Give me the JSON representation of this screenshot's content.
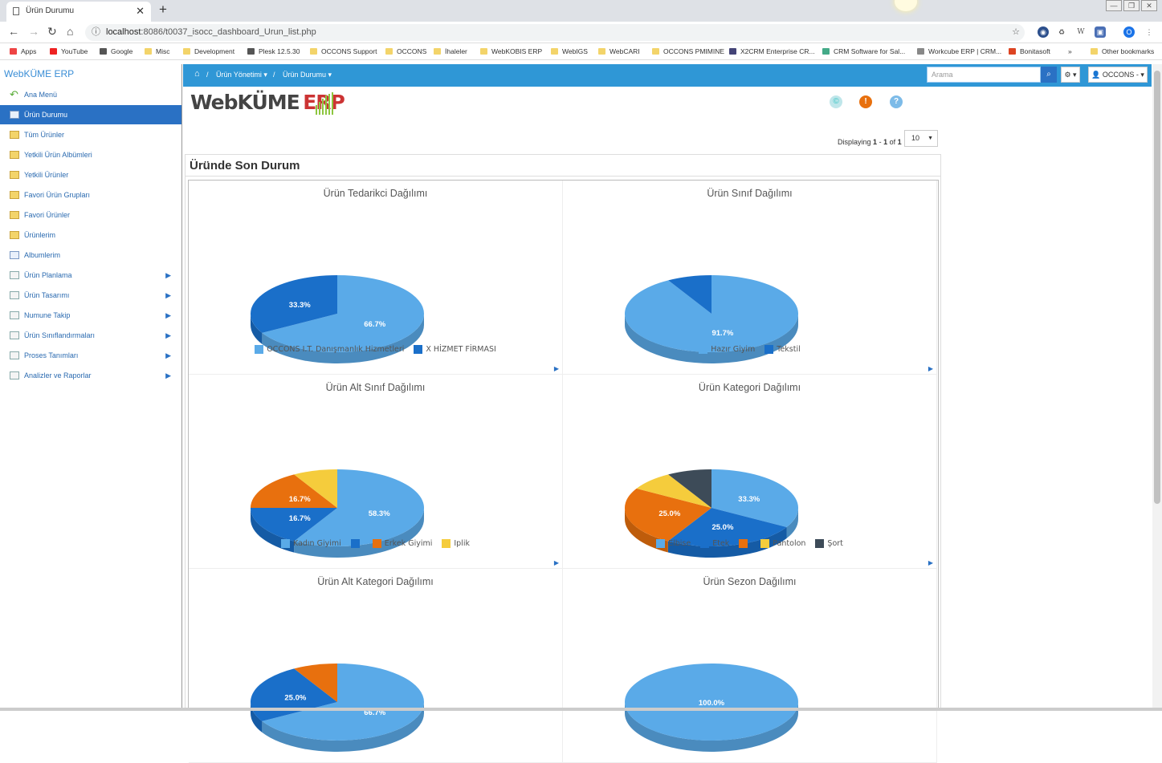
{
  "browser": {
    "tab_title": "Ürün Durumu",
    "url_host": "localhost",
    "url_path": ":8086/t0037_isocc_dashboard_Urun_list.php",
    "bookmarks": [
      "Apps",
      "YouTube",
      "Google",
      "Misc",
      "Development",
      "Plesk 12.5.30",
      "OCCONS Support",
      "OCCONS",
      "İhaleler",
      "WebKOBIS ERP",
      "WebIGS",
      "WebCARI",
      "OCCONS PMIMINE",
      "X2CRM Enterprise CR...",
      "CRM Software for Sal...",
      "Workcube ERP | CRM...",
      "Bonitasoft",
      "»",
      "Other bookmarks"
    ],
    "profile_initial": "O",
    "ext_w": "W"
  },
  "sidebar": {
    "brand": "WebKÜME ERP",
    "items": [
      {
        "label": "Ana Menü",
        "submenu": false
      },
      {
        "label": "Ürün Durumu",
        "submenu": false
      },
      {
        "label": "Tüm Ürünler",
        "submenu": false
      },
      {
        "label": "Yetkili Ürün Albümleri",
        "submenu": false
      },
      {
        "label": "Yetkili Ürünler",
        "submenu": false
      },
      {
        "label": "Favori Ürün Grupları",
        "submenu": false
      },
      {
        "label": "Favori Ürünler",
        "submenu": false
      },
      {
        "label": "Ürünlerim",
        "submenu": false
      },
      {
        "label": "Albumlerim",
        "submenu": false
      },
      {
        "label": "Ürün Planlama",
        "submenu": true
      },
      {
        "label": "Ürün Tasarımı",
        "submenu": true
      },
      {
        "label": "Numune Takip",
        "submenu": true
      },
      {
        "label": "Ürün Sınıflandırmaları",
        "submenu": true
      },
      {
        "label": "Proses Tanımları",
        "submenu": true
      },
      {
        "label": "Analizler ve Raporlar",
        "submenu": true
      }
    ]
  },
  "topnav": {
    "crumb1": "Ürün Yönetimi",
    "crumb2": "Ürün Durumu",
    "search_placeholder": "Arama",
    "user": "OCCONS -"
  },
  "logo": {
    "main": "WebKÜME",
    "erp": "ERP"
  },
  "pager": {
    "display_prefix": "Displaying",
    "from": "1",
    "to": "1",
    "of_label": "of",
    "total": "1",
    "page_size": "10"
  },
  "panel_title": "Üründe Son Durum",
  "colors": {
    "blue_light": "#5aaae8",
    "blue_dark": "#1a6fc9",
    "orange": "#e8700e",
    "yellow": "#f5cc3c",
    "slate": "#3d4b58",
    "topnav": "#2f97d6"
  },
  "chart_data": [
    {
      "type": "pie",
      "title": "Ürün Tedarikci Dağılımı",
      "series": [
        {
          "name": "OCCONS I.T. Danışmanlık Hizmetleri",
          "value": 66.7,
          "label": "66.7%",
          "color": "#5aaae8"
        },
        {
          "name": "X HİZMET FİRMASI",
          "value": 33.3,
          "label": "33.3%",
          "color": "#1a6fc9"
        }
      ]
    },
    {
      "type": "pie",
      "title": "Ürün Sınıf Dağılımı",
      "series": [
        {
          "name": "Hazır Giyim",
          "value": 91.7,
          "label": "91.7%",
          "color": "#5aaae8"
        },
        {
          "name": "Tekstil",
          "value": 8.3,
          "label": "",
          "color": "#1a6fc9"
        }
      ]
    },
    {
      "type": "pie",
      "title": "Ürün Alt Sınıf Dağılımı",
      "series": [
        {
          "name": "Kadın Giyimi",
          "value": 58.3,
          "label": "58.3%",
          "color": "#5aaae8"
        },
        {
          "name": "",
          "value": 16.7,
          "label": "16.7%",
          "color": "#1a6fc9"
        },
        {
          "name": "Erkek Giyimi",
          "value": 16.7,
          "label": "16.7%",
          "color": "#e8700e"
        },
        {
          "name": "Iplik",
          "value": 8.3,
          "label": "",
          "color": "#f5cc3c"
        }
      ]
    },
    {
      "type": "pie",
      "title": "Ürün Kategori Dağılımı",
      "series": [
        {
          "name": "Elbise",
          "value": 33.3,
          "label": "33.3%",
          "color": "#5aaae8"
        },
        {
          "name": "Etek",
          "value": 25.0,
          "label": "25.0%",
          "color": "#1a6fc9"
        },
        {
          "name": "",
          "value": 25.0,
          "label": "25.0%",
          "color": "#e8700e"
        },
        {
          "name": "Pantolon",
          "value": 8.3,
          "label": "",
          "color": "#f5cc3c"
        },
        {
          "name": "Şort",
          "value": 8.3,
          "label": "",
          "color": "#3d4b58"
        }
      ]
    },
    {
      "type": "pie",
      "title": "Ürün Alt Kategori Dağılımı",
      "series": [
        {
          "name": "",
          "value": 66.7,
          "label": "66.7%",
          "color": "#5aaae8"
        },
        {
          "name": "",
          "value": 25.0,
          "label": "25.0%",
          "color": "#1a6fc9"
        },
        {
          "name": "",
          "value": 8.3,
          "label": "",
          "color": "#e8700e"
        }
      ]
    },
    {
      "type": "pie",
      "title": "Ürün Sezon Dağılımı",
      "series": [
        {
          "name": "",
          "value": 100.0,
          "label": "100.0%",
          "color": "#5aaae8"
        }
      ]
    }
  ]
}
